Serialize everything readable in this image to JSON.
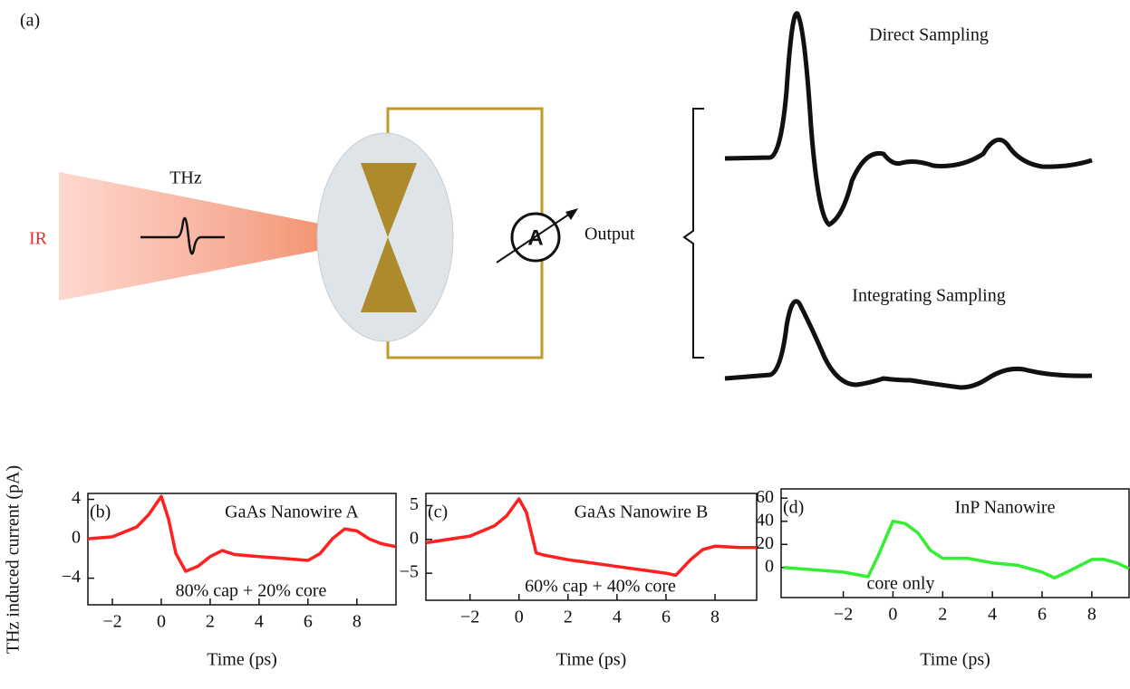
{
  "figure": {
    "panel_label": "(a)",
    "thz_label": "THz",
    "ir_label": "IR",
    "meter_label": "A",
    "output_label": "Output",
    "direct_label": "Direct Sampling",
    "integrating_label": "Integrating Sampling",
    "ylabel": "THz induced current (pA)"
  },
  "chart_data": [
    {
      "type": "line",
      "panel_label": "(b)",
      "title": "GaAs Nanowire A",
      "annotation": "80% cap + 20% core",
      "xlabel": "Time (ps)",
      "x": [
        -3,
        -2,
        -1,
        -0.5,
        0,
        0.3,
        0.6,
        1,
        1.5,
        2,
        2.5,
        3,
        4,
        5,
        6,
        6.5,
        7,
        7.5,
        8,
        8.5,
        9,
        9.6
      ],
      "series": [
        {
          "color": "#ff2020",
          "values": [
            0,
            0.2,
            1.2,
            2.5,
            4.3,
            2,
            -1.5,
            -3.3,
            -2.8,
            -1.8,
            -1.2,
            -1.6,
            -1.8,
            -2,
            -2.2,
            -1.5,
            0,
            1,
            0.8,
            0,
            -0.5,
            -0.8
          ]
        }
      ],
      "xlim": [
        -3,
        9.6
      ],
      "xticks": [
        {
          "value": -2,
          "label": "−2"
        },
        0,
        2,
        4,
        6,
        8
      ],
      "ylim": [
        -6.7,
        4.6
      ],
      "yticks": [
        4,
        0,
        {
          "value": -4,
          "label": "−4"
        }
      ]
    },
    {
      "type": "line",
      "panel_label": "(c)",
      "title": "GaAs Nanowire B",
      "annotation": "60% cap + 40% core",
      "xlabel": "Time (ps)",
      "x": [
        -3.8,
        -2,
        -1,
        -0.5,
        0,
        0.3,
        0.7,
        1,
        2,
        3,
        4,
        5,
        6,
        6.4,
        7,
        7.5,
        8,
        9,
        9.7
      ],
      "series": [
        {
          "color": "#ff2020",
          "values": [
            -0.5,
            0.5,
            2,
            3.5,
            6,
            4,
            -2,
            -2.3,
            -3,
            -3.5,
            -4,
            -4.5,
            -5,
            -5.3,
            -3,
            -1.5,
            -1,
            -1.2,
            -1.2
          ]
        }
      ],
      "xlim": [
        -3.8,
        9.7
      ],
      "xticks": [
        {
          "value": -2,
          "label": "−2"
        },
        0,
        2,
        4,
        6,
        8
      ],
      "ylim": [
        -9,
        6.8
      ],
      "yticks": [
        5,
        0,
        {
          "value": -5,
          "label": "−5"
        }
      ]
    },
    {
      "type": "line",
      "panel_label": "(d)",
      "title": "InP Nanowire",
      "annotation": "core only",
      "xlabel": "Time (ps)",
      "x": [
        -4.4,
        -2,
        -1,
        -0.6,
        -0.2,
        0,
        0.5,
        1,
        1.5,
        2,
        3,
        4,
        5,
        6,
        6.5,
        7,
        8,
        8.5,
        9,
        9.5
      ],
      "series": [
        {
          "color": "#33ee33",
          "values": [
            0,
            -4,
            -8,
            10,
            30,
            40,
            38,
            30,
            15,
            8,
            8,
            4,
            2,
            -4,
            -9,
            -4,
            7,
            7,
            4,
            -1
          ]
        }
      ],
      "xlim": [
        -4.5,
        9.5
      ],
      "xticks": [
        {
          "value": -2,
          "label": "−2"
        },
        0,
        2,
        4,
        6,
        8
      ],
      "ylim": [
        -26,
        68
      ],
      "yticks": [
        60,
        40,
        20,
        0
      ]
    }
  ]
}
